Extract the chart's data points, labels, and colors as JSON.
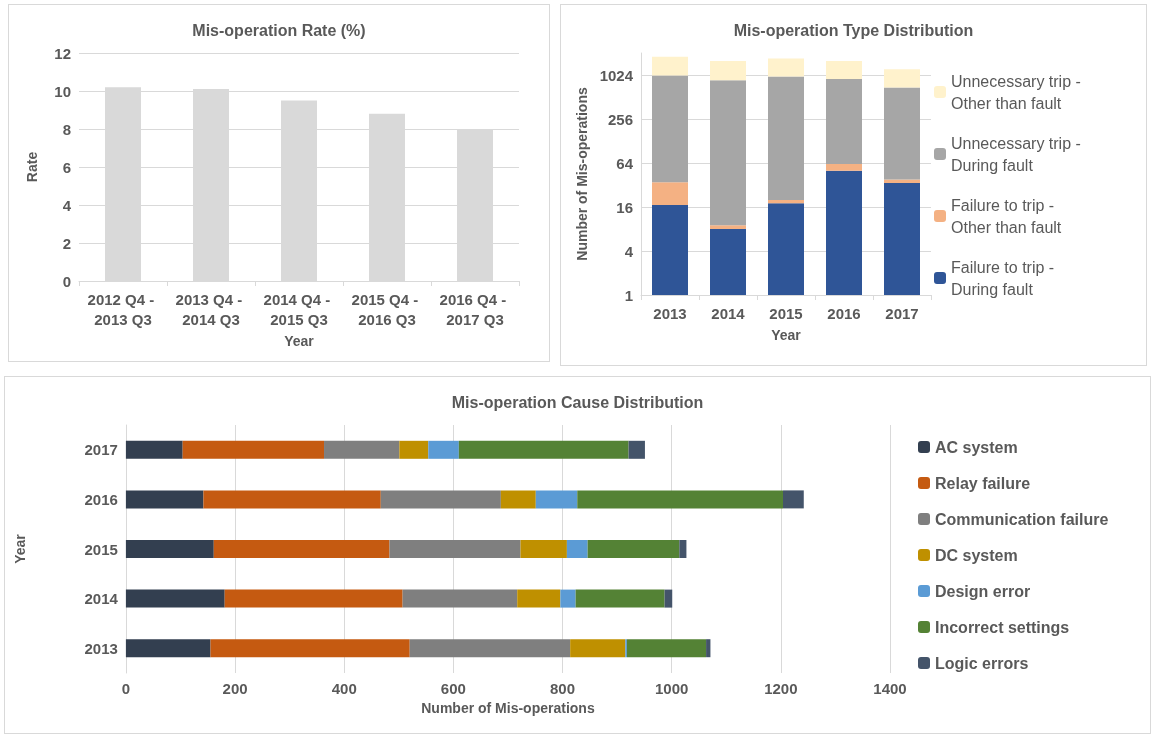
{
  "chart_data": [
    {
      "type": "bar",
      "title": "Mis-operation Rate (%)",
      "xlabel": "Year",
      "ylabel": "Rate",
      "categories": [
        "2012 Q4 - 2013 Q3",
        "2013 Q4 - 2014 Q3",
        "2014 Q4 - 2015 Q3",
        "2015 Q4 - 2016 Q3",
        "2016 Q4 - 2017 Q3"
      ],
      "values": [
        10.2,
        10.1,
        9.5,
        8.8,
        8.0
      ],
      "color": "#d9d9d9",
      "ylim": [
        0,
        12
      ],
      "yticks": [
        0,
        2,
        4,
        6,
        8,
        10,
        12
      ],
      "grid": "y",
      "legend": false
    },
    {
      "type": "bar",
      "title": "Mis-operation Type Distribution",
      "xlabel": "Year",
      "ylabel": "Number of Mis-operations",
      "categories": [
        "2013",
        "2014",
        "2015",
        "2016",
        "2017"
      ],
      "stacked": true,
      "log": "y",
      "series": [
        {
          "name": "Failure to trip - During fault",
          "color": "#2f5597",
          "values": [
            17,
            8,
            18,
            50,
            34
          ]
        },
        {
          "name": "Failure to trip - Other than fault",
          "color": "#f4b183",
          "values": [
            18,
            1,
            2,
            12,
            4
          ]
        },
        {
          "name": "Unnecessary trip - During fault",
          "color": "#a6a6a6",
          "values": [
            975,
            857,
            957,
            843,
            652
          ]
        },
        {
          "name": "Unnecessary trip - Other than fault",
          "color": "#fff2cc",
          "values": [
            810,
            720,
            743,
            681,
            536
          ]
        }
      ],
      "ylim": [
        1,
        2048
      ],
      "yticks": [
        1,
        4,
        16,
        64,
        256,
        1024
      ],
      "grid": "y",
      "legend": "right"
    },
    {
      "type": "bar",
      "title": "Mis-operation Cause Distribution",
      "xlabel": "Number of Mis-operations",
      "ylabel": "Year",
      "orientation": "horizontal",
      "stacked": true,
      "categories": [
        "2017",
        "2016",
        "2015",
        "2014",
        "2013"
      ],
      "series": [
        {
          "name": "AC system",
          "color": "#333f50",
          "values": [
            104,
            142,
            161,
            181,
            155
          ]
        },
        {
          "name": "Relay failure",
          "color": "#c55a11",
          "values": [
            259,
            325,
            322,
            326,
            365
          ]
        },
        {
          "name": "Communication failure",
          "color": "#7f7f7f",
          "values": [
            138,
            220,
            240,
            210,
            294
          ]
        },
        {
          "name": "DC system",
          "color": "#bf9000",
          "values": [
            53,
            64,
            85,
            79,
            101
          ]
        },
        {
          "name": "Design error",
          "color": "#5b9bd5",
          "values": [
            56,
            76,
            38,
            28,
            3
          ]
        },
        {
          "name": "Incorrect settings",
          "color": "#548235",
          "values": [
            311,
            377,
            168,
            163,
            145
          ]
        },
        {
          "name": "Logic errors",
          "color": "#44546a",
          "values": [
            30,
            38,
            13,
            14,
            8
          ]
        }
      ],
      "xlim": [
        0,
        1400
      ],
      "xticks": [
        0,
        200,
        400,
        600,
        800,
        1000,
        1200,
        1400
      ],
      "grid": "x",
      "legend": "right"
    }
  ]
}
